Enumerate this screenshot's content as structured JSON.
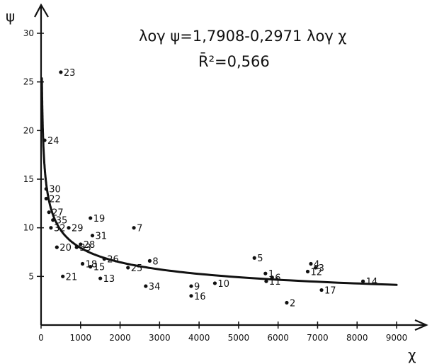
{
  "chart_data": {
    "type": "scatter",
    "equation": "λογ ψ=1,7908-0,2971 λογ χ",
    "r_squared": "R̄²=0,566",
    "xlabel": "χ",
    "ylabel": "ψ",
    "xlim": [
      0,
      9000
    ],
    "ylim": [
      0,
      30
    ],
    "x_ticks": [
      0,
      1000,
      2000,
      3000,
      4000,
      5000,
      6000,
      7000,
      8000,
      9000
    ],
    "x_tick_labels": [
      "0",
      "1000",
      "2000",
      "3000",
      "4000",
      "5000",
      "6000",
      "7000",
      "8000",
      "9000"
    ],
    "y_ticks": [
      5,
      10,
      15,
      20,
      25,
      30
    ],
    "y_tick_labels": [
      "5",
      "10",
      "15",
      "20",
      "25",
      "30"
    ],
    "grid": false,
    "fit_curve": {
      "log10_intercept": 1.7908,
      "log10_slope": -0.2971,
      "x_range": [
        20,
        9000
      ]
    },
    "points": [
      {
        "label": "1",
        "x": 5680,
        "y": 5.3
      },
      {
        "label": "2",
        "x": 6220,
        "y": 2.3
      },
      {
        "label": "3",
        "x": 6950,
        "y": 5.9
      },
      {
        "label": "4",
        "x": 6830,
        "y": 6.3
      },
      {
        "label": "5",
        "x": 5400,
        "y": 6.9
      },
      {
        "label": "6",
        "x": 5850,
        "y": 4.9
      },
      {
        "label": "7",
        "x": 2350,
        "y": 10.0
      },
      {
        "label": "8",
        "x": 2750,
        "y": 6.6
      },
      {
        "label": "9",
        "x": 3800,
        "y": 4.0
      },
      {
        "label": "10",
        "x": 4400,
        "y": 4.3
      },
      {
        "label": "11",
        "x": 5700,
        "y": 4.5
      },
      {
        "label": "12",
        "x": 6750,
        "y": 5.5
      },
      {
        "label": "13",
        "x": 1500,
        "y": 4.8
      },
      {
        "label": "14",
        "x": 8150,
        "y": 4.5
      },
      {
        "label": "15",
        "x": 1250,
        "y": 6.0
      },
      {
        "label": "16",
        "x": 3800,
        "y": 3.0
      },
      {
        "label": "17",
        "x": 7100,
        "y": 3.6
      },
      {
        "label": "18",
        "x": 1050,
        "y": 6.3
      },
      {
        "label": "19",
        "x": 1250,
        "y": 11.0
      },
      {
        "label": "20",
        "x": 400,
        "y": 8.0
      },
      {
        "label": "21",
        "x": 550,
        "y": 5.0
      },
      {
        "label": "22",
        "x": 130,
        "y": 13.0
      },
      {
        "label": "23",
        "x": 500,
        "y": 26.0
      },
      {
        "label": "24",
        "x": 90,
        "y": 19.0
      },
      {
        "label": "25",
        "x": 2200,
        "y": 5.9
      },
      {
        "label": "26",
        "x": 1600,
        "y": 6.8
      },
      {
        "label": "27",
        "x": 200,
        "y": 11.6
      },
      {
        "label": "28",
        "x": 1000,
        "y": 8.3
      },
      {
        "label": "29",
        "x": 700,
        "y": 10.0
      },
      {
        "label": "30",
        "x": 130,
        "y": 14.0
      },
      {
        "label": "31",
        "x": 1300,
        "y": 9.2
      },
      {
        "label": "32",
        "x": 250,
        "y": 10.0
      },
      {
        "label": "33",
        "x": 900,
        "y": 8.0
      },
      {
        "label": "34",
        "x": 2650,
        "y": 4.0
      },
      {
        "label": "35",
        "x": 300,
        "y": 10.8
      }
    ]
  }
}
